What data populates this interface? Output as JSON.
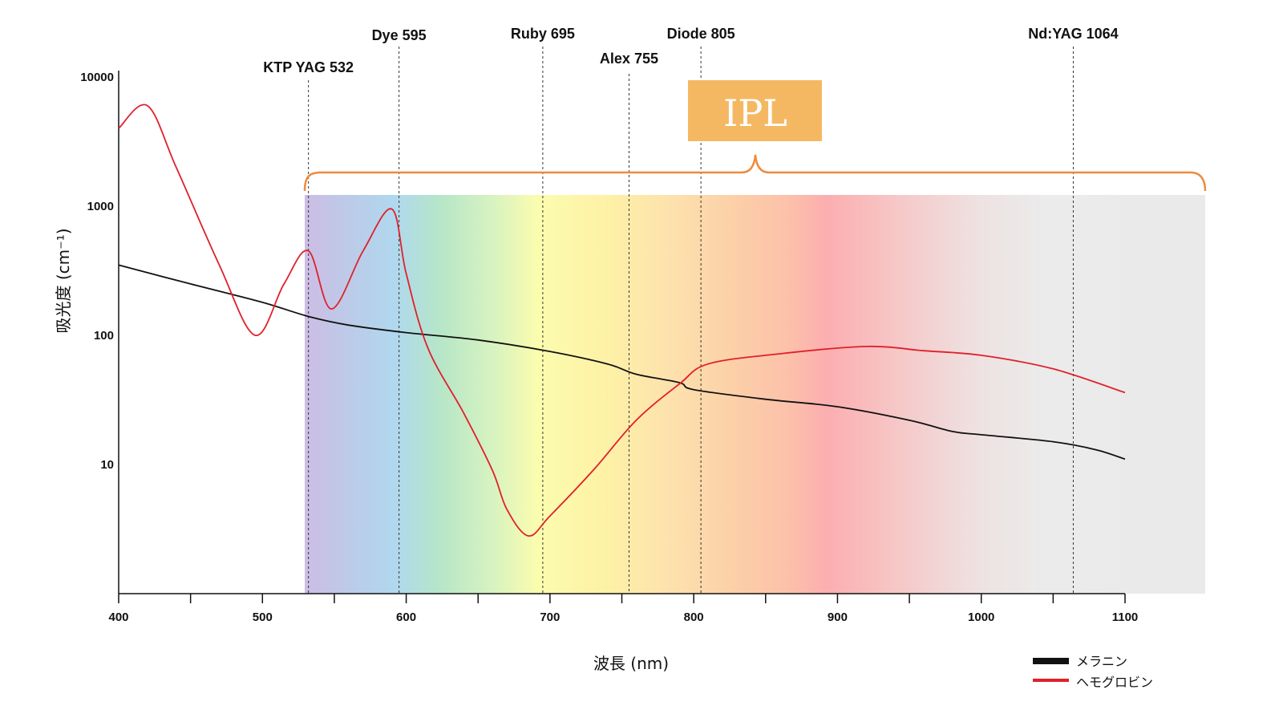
{
  "chart_data": {
    "type": "line",
    "xlabel": "波長 (nm)",
    "ylabel": "吸光度 (cm⁻¹)",
    "xlim": [
      400,
      1100
    ],
    "ylim": [
      1,
      10000
    ],
    "yscale": "log",
    "x_tick_labels": [
      "400",
      "500",
      "600",
      "700",
      "800",
      "900",
      "1000",
      "1100"
    ],
    "y_tick_labels": [
      "10000",
      "1000",
      "100",
      "10"
    ],
    "laser_lines": [
      {
        "label": "KTP YAG 532",
        "x": 532
      },
      {
        "label": "Dye 595",
        "x": 595
      },
      {
        "label": "Ruby 695",
        "x": 695
      },
      {
        "label": "Alex 755",
        "x": 755
      },
      {
        "label": "Diode 805",
        "x": 805
      },
      {
        "label": "Nd:YAG 1064",
        "x": 1064
      }
    ],
    "ipl_band": {
      "label": "IPL",
      "x_start": 532,
      "x_end": 1157
    },
    "series": [
      {
        "name": "メラニン",
        "color": "#111111",
        "x": [
          400,
          450,
          500,
          532,
          560,
          600,
          650,
          700,
          740,
          760,
          790,
          800,
          850,
          900,
          950,
          980,
          1000,
          1050,
          1080,
          1100
        ],
        "y": [
          350,
          250,
          180,
          140,
          120,
          105,
          92,
          75,
          60,
          50,
          43,
          38,
          32,
          28,
          22,
          18,
          17,
          15,
          13,
          11
        ]
      },
      {
        "name": "ヘモグロビン",
        "color": "#e0202b",
        "x": [
          400,
          420,
          440,
          470,
          495,
          515,
          532,
          548,
          570,
          590,
          600,
          615,
          640,
          660,
          670,
          685,
          700,
          730,
          760,
          790,
          810,
          860,
          920,
          960,
          1000,
          1050,
          1100
        ],
        "y": [
          4000,
          6000,
          2000,
          350,
          100,
          250,
          450,
          160,
          450,
          950,
          300,
          80,
          25,
          9,
          4.5,
          2.8,
          4,
          9,
          22,
          42,
          60,
          72,
          82,
          76,
          70,
          55,
          36
        ]
      }
    ]
  }
}
